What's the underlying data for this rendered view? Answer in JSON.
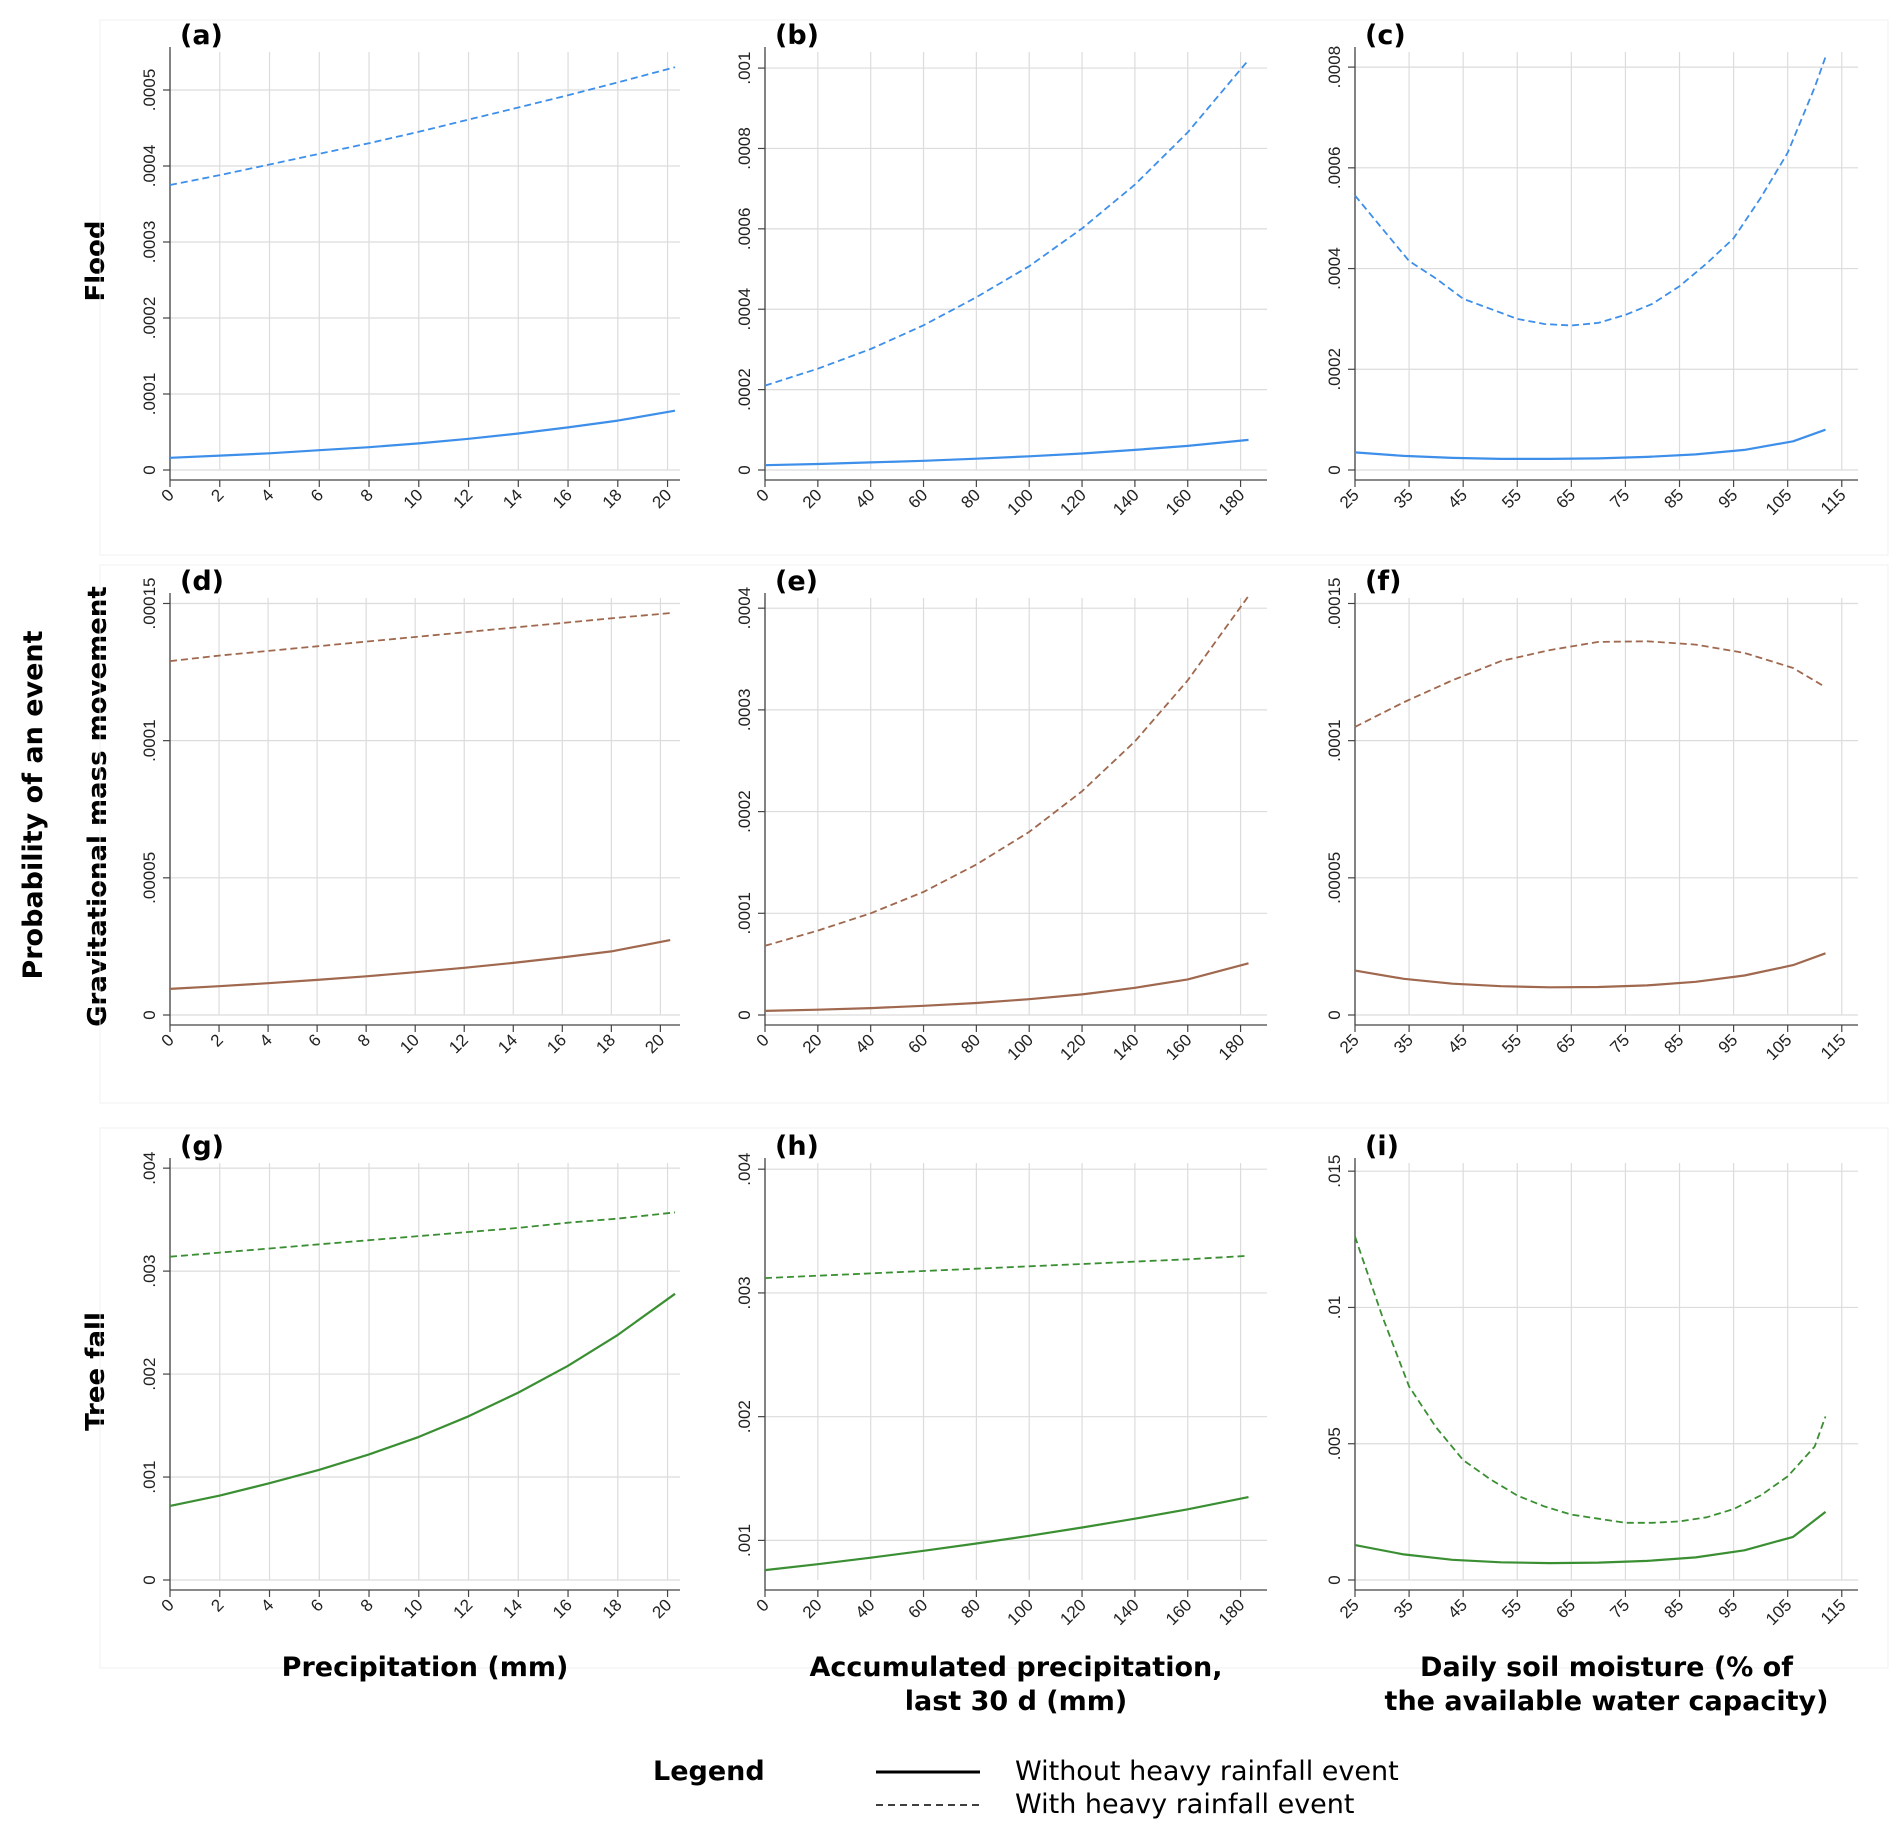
{
  "figure": {
    "y_title": "Probability of an event",
    "row_labels": [
      "Flood",
      "Gravitational mass movement",
      "Tree fall"
    ],
    "x_titles": [
      [
        "Precipitation (mm)"
      ],
      [
        "Accumulated precipitation,",
        "last 30 d (mm)"
      ],
      [
        "Daily soil moisture (% of",
        "the available water capacity)"
      ]
    ],
    "legend": {
      "title": "Legend",
      "items": [
        {
          "label": "Without heavy rainfall event",
          "style": "solid"
        },
        {
          "label": "With heavy rainfall event",
          "style": "dashed"
        }
      ]
    },
    "colors": {
      "flood": "#3d8fea",
      "mass": "#a0684e",
      "tree": "#3b8f33",
      "grid": "#dcdcdc"
    }
  },
  "chart_data": [
    {
      "id": "a",
      "type": "line",
      "row": 0,
      "col": 0,
      "color": "#3d8fea",
      "xlim": [
        0,
        20.5
      ],
      "ylim": [
        0,
        0.00055
      ],
      "xticks": [
        "0",
        "2",
        "4",
        "6",
        "8",
        "10",
        "12",
        "14",
        "16",
        "18",
        "20"
      ],
      "yticks": [
        {
          "v": 0,
          "label": "0"
        },
        {
          "v": 0.0001,
          "label": ".0001"
        },
        {
          "v": 0.0002,
          "label": ".0002"
        },
        {
          "v": 0.0003,
          "label": ".0003"
        },
        {
          "v": 0.0004,
          "label": ".0004"
        },
        {
          "v": 0.0005,
          "label": ".0005"
        }
      ],
      "series": [
        {
          "style": "solid",
          "x": [
            0,
            2,
            4,
            6,
            8,
            10,
            12,
            14,
            16,
            18,
            20.3
          ],
          "y": [
            1.6e-05,
            1.9e-05,
            2.2e-05,
            2.6e-05,
            3e-05,
            3.5e-05,
            4.1e-05,
            4.8e-05,
            5.6e-05,
            6.5e-05,
            7.8e-05
          ]
        },
        {
          "style": "dashed",
          "x": [
            0,
            2,
            4,
            6,
            8,
            10,
            12,
            14,
            16,
            18,
            20.3
          ],
          "y": [
            0.000375,
            0.000388,
            0.000402,
            0.000416,
            0.00043,
            0.000445,
            0.000461,
            0.000477,
            0.000493,
            0.00051,
            0.00053
          ]
        }
      ]
    },
    {
      "id": "b",
      "type": "line",
      "row": 0,
      "col": 1,
      "color": "#3d8fea",
      "xlim": [
        0,
        190
      ],
      "ylim": [
        0,
        0.00104
      ],
      "xticks": [
        "0",
        "20",
        "40",
        "60",
        "80",
        "100",
        "120",
        "140",
        "160",
        "180"
      ],
      "yticks": [
        {
          "v": 0,
          "label": "0"
        },
        {
          "v": 0.0002,
          "label": ".0002"
        },
        {
          "v": 0.0004,
          "label": ".0004"
        },
        {
          "v": 0.0006,
          "label": ".0006"
        },
        {
          "v": 0.0008,
          "label": ".0008"
        },
        {
          "v": 0.001,
          "label": ".001"
        }
      ],
      "series": [
        {
          "style": "solid",
          "x": [
            0,
            20,
            40,
            60,
            80,
            100,
            120,
            140,
            160,
            183
          ],
          "y": [
            1.2e-05,
            1.5e-05,
            1.9e-05,
            2.3e-05,
            2.8e-05,
            3.4e-05,
            4.1e-05,
            5e-05,
            6e-05,
            7.5e-05
          ]
        },
        {
          "style": "dashed",
          "x": [
            0,
            20,
            40,
            60,
            80,
            100,
            120,
            140,
            160,
            183
          ],
          "y": [
            0.00021,
            0.000252,
            0.000301,
            0.00036,
            0.00043,
            0.000507,
            0.000601,
            0.00071,
            0.00084,
            0.00102
          ]
        }
      ]
    },
    {
      "id": "c",
      "type": "line",
      "row": 0,
      "col": 2,
      "color": "#3d8fea",
      "xlim": [
        25,
        118
      ],
      "ylim": [
        0,
        0.00083
      ],
      "xticks": [
        "25",
        "35",
        "45",
        "55",
        "65",
        "75",
        "85",
        "95",
        "105",
        "115"
      ],
      "yticks": [
        {
          "v": 0,
          "label": "0"
        },
        {
          "v": 0.0002,
          "label": ".0002"
        },
        {
          "v": 0.0004,
          "label": ".0004"
        },
        {
          "v": 0.0006,
          "label": ".0006"
        },
        {
          "v": 0.0008,
          "label": ".0008"
        }
      ],
      "series": [
        {
          "style": "solid",
          "x": [
            25,
            34,
            43,
            52,
            61,
            70,
            79,
            88,
            97,
            106,
            112
          ],
          "y": [
            3.5e-05,
            2.8e-05,
            2.4e-05,
            2.2e-05,
            2.2e-05,
            2.3e-05,
            2.6e-05,
            3.1e-05,
            4e-05,
            5.7e-05,
            8e-05
          ]
        },
        {
          "style": "dashed",
          "x": [
            25,
            30,
            35,
            40,
            45,
            50,
            55,
            60,
            65,
            70,
            75,
            80,
            85,
            90,
            95,
            100,
            105,
            110,
            112
          ],
          "y": [
            0.000545,
            0.00048,
            0.000415,
            0.00038,
            0.00034,
            0.00032,
            0.0003,
            0.00029,
            0.000287,
            0.000292,
            0.000308,
            0.00033,
            0.000365,
            0.00041,
            0.00046,
            0.00054,
            0.00063,
            0.00076,
            0.00082
          ]
        }
      ]
    },
    {
      "id": "d",
      "type": "line",
      "row": 1,
      "col": 0,
      "color": "#a0684e",
      "xlim": [
        0,
        20.8
      ],
      "ylim": [
        0,
        0.000152
      ],
      "xticks": [
        "0",
        "2",
        "4",
        "6",
        "8",
        "10",
        "12",
        "14",
        "16",
        "18",
        "20"
      ],
      "yticks": [
        {
          "v": 0,
          "label": "0"
        },
        {
          "v": 5e-05,
          "label": ".00005"
        },
        {
          "v": 0.0001,
          "label": ".0001"
        },
        {
          "v": 0.00015,
          "label": ".00015"
        }
      ],
      "series": [
        {
          "style": "solid",
          "x": [
            0,
            2,
            4,
            6,
            8,
            10,
            12,
            14,
            16,
            18,
            20.4
          ],
          "y": [
            9.5e-06,
            1.05e-05,
            1.16e-05,
            1.28e-05,
            1.41e-05,
            1.56e-05,
            1.72e-05,
            1.9e-05,
            2.1e-05,
            2.32e-05,
            2.73e-05
          ]
        },
        {
          "style": "dashed",
          "x": [
            0,
            2,
            4,
            6,
            8,
            10,
            12,
            14,
            16,
            18,
            20.4
          ],
          "y": [
            0.000129,
            0.000131,
            0.0001327,
            0.0001344,
            0.0001361,
            0.0001378,
            0.0001395,
            0.0001412,
            0.0001429,
            0.0001446,
            0.0001465
          ]
        }
      ]
    },
    {
      "id": "e",
      "type": "line",
      "row": 1,
      "col": 1,
      "color": "#a0684e",
      "xlim": [
        0,
        190
      ],
      "ylim": [
        0,
        0.00041
      ],
      "xticks": [
        "0",
        "20",
        "40",
        "60",
        "80",
        "100",
        "120",
        "140",
        "160",
        "180"
      ],
      "yticks": [
        {
          "v": 0,
          "label": "0"
        },
        {
          "v": 0.0001,
          "label": ".0001"
        },
        {
          "v": 0.0002,
          "label": ".0002"
        },
        {
          "v": 0.0003,
          "label": ".0003"
        },
        {
          "v": 0.0004,
          "label": ".0004"
        }
      ],
      "series": [
        {
          "style": "solid",
          "x": [
            0,
            20,
            40,
            60,
            80,
            100,
            120,
            140,
            160,
            183
          ],
          "y": [
            4e-06,
            5.2e-06,
            6.8e-06,
            9e-06,
            1.18e-05,
            1.55e-05,
            2.03e-05,
            2.67e-05,
            3.5e-05,
            5.08e-05
          ]
        },
        {
          "style": "dashed",
          "x": [
            0,
            20,
            40,
            60,
            80,
            100,
            120,
            140,
            160,
            183
          ],
          "y": [
            6.8e-05,
            8.3e-05,
            0.0001,
            0.000121,
            0.000148,
            0.00018,
            0.00022,
            0.000269,
            0.000329,
            0.000412
          ]
        }
      ]
    },
    {
      "id": "f",
      "type": "line",
      "row": 1,
      "col": 2,
      "color": "#a0684e",
      "xlim": [
        25,
        118
      ],
      "ylim": [
        0,
        0.000152
      ],
      "xticks": [
        "25",
        "35",
        "45",
        "55",
        "65",
        "75",
        "85",
        "95",
        "105",
        "115"
      ],
      "yticks": [
        {
          "v": 0,
          "label": "0"
        },
        {
          "v": 5e-05,
          "label": ".00005"
        },
        {
          "v": 0.0001,
          "label": ".0001"
        },
        {
          "v": 0.00015,
          "label": ".00015"
        }
      ],
      "series": [
        {
          "style": "solid",
          "x": [
            25,
            34,
            43,
            52,
            61,
            70,
            79,
            88,
            97,
            106,
            112
          ],
          "y": [
            1.62e-05,
            1.32e-05,
            1.14e-05,
            1.05e-05,
            1.01e-05,
            1.02e-05,
            1.08e-05,
            1.21e-05,
            1.44e-05,
            1.82e-05,
            2.25e-05
          ]
        },
        {
          "style": "dashed",
          "x": [
            25,
            34,
            43,
            52,
            61,
            70,
            79,
            88,
            97,
            106,
            112
          ],
          "y": [
            0.000105,
            0.000114,
            0.000122,
            0.000129,
            0.000133,
            0.000136,
            0.0001362,
            0.000135,
            0.000132,
            0.0001265,
            0.0001195
          ]
        }
      ]
    },
    {
      "id": "g",
      "type": "line",
      "row": 2,
      "col": 0,
      "color": "#3b8f33",
      "xlim": [
        0,
        20.5
      ],
      "ylim": [
        0,
        0.00405
      ],
      "xticks": [
        "0",
        "2",
        "4",
        "6",
        "8",
        "10",
        "12",
        "14",
        "16",
        "18",
        "20"
      ],
      "yticks": [
        {
          "v": 0,
          "label": "0"
        },
        {
          "v": 0.001,
          "label": ".001"
        },
        {
          "v": 0.002,
          "label": ".002"
        },
        {
          "v": 0.003,
          "label": ".003"
        },
        {
          "v": 0.004,
          "label": ".004"
        }
      ],
      "series": [
        {
          "style": "solid",
          "x": [
            0,
            2,
            4,
            6,
            8,
            10,
            12,
            14,
            16,
            18,
            20.3
          ],
          "y": [
            0.00072,
            0.00082,
            0.00094,
            0.00107,
            0.00122,
            0.00139,
            0.00159,
            0.00182,
            0.00208,
            0.00238,
            0.00278
          ]
        },
        {
          "style": "dashed",
          "x": [
            0,
            2,
            4,
            6,
            8,
            10,
            12,
            14,
            16,
            18,
            20.3
          ],
          "y": [
            0.00314,
            0.00318,
            0.00322,
            0.00326,
            0.0033,
            0.00334,
            0.00338,
            0.00342,
            0.00347,
            0.00351,
            0.00357
          ]
        }
      ]
    },
    {
      "id": "h",
      "type": "line",
      "row": 2,
      "col": 1,
      "color": "#3b8f33",
      "xlim": [
        0,
        190
      ],
      "ylim": [
        0.00068,
        0.00405
      ],
      "xticks": [
        "0",
        "20",
        "40",
        "60",
        "80",
        "100",
        "120",
        "140",
        "160",
        "180"
      ],
      "yticks": [
        {
          "v": 0.001,
          "label": ".001"
        },
        {
          "v": 0.002,
          "label": ".002"
        },
        {
          "v": 0.003,
          "label": ".003"
        },
        {
          "v": 0.004,
          "label": ".004"
        }
      ],
      "series": [
        {
          "style": "solid",
          "x": [
            0,
            20,
            40,
            60,
            80,
            100,
            120,
            140,
            160,
            183
          ],
          "y": [
            0.00076,
            0.000808,
            0.00086,
            0.000916,
            0.000975,
            0.001037,
            0.001104,
            0.001175,
            0.001251,
            0.00135
          ]
        },
        {
          "style": "dashed",
          "x": [
            0,
            20,
            40,
            60,
            80,
            100,
            120,
            140,
            160,
            183
          ],
          "y": [
            0.00312,
            0.003139,
            0.003158,
            0.003177,
            0.003196,
            0.003215,
            0.003234,
            0.003253,
            0.003272,
            0.0033
          ]
        }
      ]
    },
    {
      "id": "i",
      "type": "line",
      "row": 2,
      "col": 2,
      "color": "#3b8f33",
      "xlim": [
        25,
        118
      ],
      "ylim": [
        0,
        0.0153
      ],
      "xticks": [
        "25",
        "35",
        "45",
        "55",
        "65",
        "75",
        "85",
        "95",
        "105",
        "115"
      ],
      "yticks": [
        {
          "v": 0,
          "label": "0"
        },
        {
          "v": 0.005,
          "label": ".005"
        },
        {
          "v": 0.01,
          "label": ".01"
        },
        {
          "v": 0.015,
          "label": ".015"
        }
      ],
      "series": [
        {
          "style": "solid",
          "x": [
            25,
            34,
            43,
            52,
            61,
            70,
            79,
            88,
            97,
            106,
            112
          ],
          "y": [
            0.00128,
            0.00094,
            0.00074,
            0.00065,
            0.00062,
            0.00064,
            0.0007,
            0.00083,
            0.00109,
            0.00158,
            0.0025
          ]
        },
        {
          "style": "dashed",
          "x": [
            25,
            30,
            35,
            40,
            45,
            50,
            55,
            60,
            65,
            70,
            75,
            80,
            85,
            90,
            95,
            100,
            105,
            110,
            112
          ],
          "y": [
            0.0126,
            0.0097,
            0.0071,
            0.0056,
            0.0044,
            0.0037,
            0.0031,
            0.0027,
            0.0024,
            0.00225,
            0.0021,
            0.0021,
            0.00215,
            0.0023,
            0.0026,
            0.0031,
            0.0038,
            0.0049,
            0.006
          ]
        }
      ]
    }
  ]
}
